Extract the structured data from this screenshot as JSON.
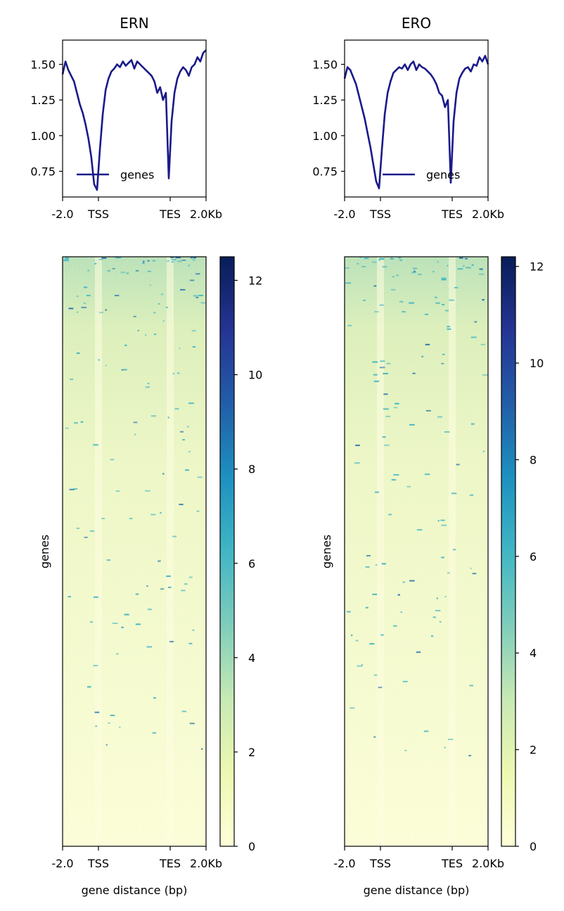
{
  "chart_data": [
    {
      "type": "line",
      "panel": "profile",
      "title": "ERN",
      "xticks": [
        "-2.0",
        "TSS",
        "TES",
        "2.0Kb"
      ],
      "yticks": [
        0.75,
        1.0,
        1.25,
        1.5
      ],
      "ylim": [
        0.57,
        1.67
      ],
      "legend": {
        "label": "genes",
        "placement": "lower-center"
      },
      "line_color": "#1a1a8a",
      "series": [
        {
          "name": "genes",
          "x": [
            0,
            2,
            4,
            6,
            8,
            10,
            12,
            14,
            16,
            18,
            20,
            22,
            24,
            26,
            28,
            30,
            32,
            34,
            36,
            38,
            40,
            42,
            44,
            46,
            48,
            50,
            52,
            54,
            56,
            58,
            60,
            62,
            64,
            66,
            68,
            70,
            72,
            74,
            76,
            78,
            80,
            82,
            84,
            86,
            88,
            90,
            92,
            94,
            96,
            98,
            100
          ],
          "values": [
            1.43,
            1.52,
            1.46,
            1.42,
            1.38,
            1.3,
            1.22,
            1.16,
            1.08,
            0.98,
            0.85,
            0.66,
            0.62,
            0.9,
            1.15,
            1.32,
            1.4,
            1.45,
            1.47,
            1.5,
            1.48,
            1.52,
            1.49,
            1.51,
            1.53,
            1.47,
            1.52,
            1.5,
            1.48,
            1.46,
            1.44,
            1.42,
            1.38,
            1.3,
            1.34,
            1.25,
            1.3,
            0.7,
            1.1,
            1.3,
            1.4,
            1.45,
            1.48,
            1.46,
            1.42,
            1.48,
            1.5,
            1.55,
            1.52,
            1.58,
            1.6
          ]
        }
      ]
    },
    {
      "type": "line",
      "panel": "profile",
      "title": "ERO",
      "xticks": [
        "-2.0",
        "TSS",
        "TES",
        "2.0Kb"
      ],
      "yticks": [
        0.75,
        1.0,
        1.25,
        1.5
      ],
      "ylim": [
        0.57,
        1.67
      ],
      "legend": {
        "label": "genes",
        "placement": "lower-right"
      },
      "line_color": "#1a1a8a",
      "series": [
        {
          "name": "genes",
          "x": [
            0,
            2,
            4,
            6,
            8,
            10,
            12,
            14,
            16,
            18,
            20,
            22,
            24,
            26,
            28,
            30,
            32,
            34,
            36,
            38,
            40,
            42,
            44,
            46,
            48,
            50,
            52,
            54,
            56,
            58,
            60,
            62,
            64,
            66,
            68,
            70,
            72,
            74,
            76,
            78,
            80,
            82,
            84,
            86,
            88,
            90,
            92,
            94,
            96,
            98,
            100
          ],
          "values": [
            1.4,
            1.48,
            1.46,
            1.41,
            1.36,
            1.28,
            1.2,
            1.12,
            1.02,
            0.92,
            0.8,
            0.68,
            0.63,
            0.9,
            1.15,
            1.3,
            1.38,
            1.44,
            1.46,
            1.48,
            1.47,
            1.5,
            1.46,
            1.5,
            1.52,
            1.46,
            1.5,
            1.48,
            1.47,
            1.45,
            1.43,
            1.4,
            1.36,
            1.3,
            1.28,
            1.2,
            1.25,
            0.67,
            1.1,
            1.3,
            1.4,
            1.44,
            1.47,
            1.48,
            1.45,
            1.5,
            1.49,
            1.55,
            1.52,
            1.56,
            1.5
          ]
        }
      ]
    },
    {
      "type": "heatmap",
      "panel": "heatmap",
      "ylabel": "genes",
      "xlabel": "gene distance (bp)",
      "xticks": [
        "-2.0",
        "TSS",
        "TES",
        "2.0Kb"
      ],
      "colormap": "YlGnBu",
      "colorbar_ticks": [
        0,
        2,
        4,
        6,
        8,
        10,
        12
      ],
      "colorbar_max": 12.5
    },
    {
      "type": "heatmap",
      "panel": "heatmap",
      "ylabel": "genes",
      "xlabel": "gene distance (bp)",
      "xticks": [
        "-2.0",
        "TSS",
        "TES",
        "2.0Kb"
      ],
      "colormap": "YlGnBu",
      "colorbar_ticks": [
        0,
        2,
        4,
        6,
        8,
        10,
        12
      ],
      "colorbar_max": 12.2
    }
  ]
}
